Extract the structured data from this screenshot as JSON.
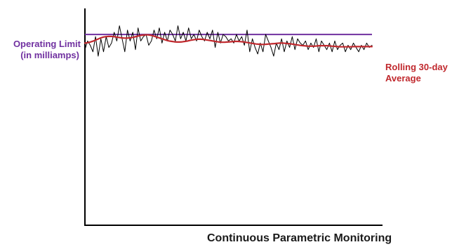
{
  "chart_data": {
    "type": "line",
    "title": "Continuous Parametric Monitoring",
    "xlabel": "",
    "ylabel": "",
    "grid": false,
    "legend": "none",
    "ylim": [
      0,
      100
    ],
    "xlim": [
      0,
      110
    ],
    "reference_line": {
      "label_line1": "Operating Limit",
      "label_line2": "(in milliamps)",
      "value": 88,
      "color": "#7030a0"
    },
    "series": [
      {
        "color": "#000000",
        "values": [
          81,
          85,
          83,
          80,
          87,
          78,
          86,
          80,
          87,
          82,
          84,
          89,
          85,
          92,
          86,
          80,
          90,
          85,
          89,
          81,
          91,
          85,
          87,
          88,
          83,
          85,
          90,
          86,
          91,
          84,
          89,
          85,
          90,
          88,
          85,
          92,
          86,
          89,
          85,
          91,
          86,
          88,
          85,
          90,
          87,
          85,
          89,
          86,
          90,
          82,
          89,
          84,
          88,
          87,
          85,
          86,
          84,
          88,
          85,
          87,
          83,
          90,
          80,
          86,
          82,
          79,
          84,
          80,
          88,
          85,
          82,
          78,
          84,
          81,
          86,
          80,
          85,
          82,
          87,
          81,
          86,
          84,
          83,
          85,
          81,
          84,
          82,
          86,
          80,
          85,
          83,
          81,
          84,
          80,
          85,
          81,
          83,
          84,
          80,
          83,
          81,
          84,
          82,
          80,
          83,
          81,
          84,
          82,
          83
        ]
      },
      {
        "name": "Rolling 30-day Average",
        "label_line1": "Rolling 30-day",
        "label_line2": "Average",
        "color": "#c0282d",
        "values": [
          84.0,
          84.2,
          84.5,
          84.9,
          85.4,
          85.9,
          86.4,
          86.8,
          87.0,
          87.1,
          87.1,
          87.0,
          86.8,
          86.6,
          86.4,
          86.3,
          86.3,
          86.4,
          86.6,
          86.9,
          87.2,
          87.5,
          87.7,
          87.8,
          87.8,
          87.6,
          87.3,
          86.9,
          86.5,
          86.1,
          85.7,
          85.3,
          85.0,
          84.8,
          84.6,
          84.5,
          84.5,
          84.6,
          84.8,
          85.0,
          85.3,
          85.5,
          85.7,
          85.8,
          85.8,
          85.7,
          85.5,
          85.3,
          85.1,
          84.9,
          84.7,
          84.5,
          84.4,
          84.4,
          84.5,
          84.6,
          84.7,
          84.8,
          84.8,
          84.7,
          84.6,
          84.4,
          84.2,
          84.0,
          83.8,
          83.6,
          83.5,
          83.4,
          83.4,
          83.5,
          83.6,
          83.7,
          83.8,
          83.9,
          84.0,
          84.0,
          83.9,
          83.8,
          83.7,
          83.5,
          83.3,
          83.1,
          82.9,
          82.8,
          82.7,
          82.6,
          82.6,
          82.6,
          82.7,
          82.8,
          82.8,
          82.8,
          82.8,
          82.7,
          82.6,
          82.5,
          82.4,
          82.3,
          82.3,
          82.3,
          82.3,
          82.3,
          82.4,
          82.4,
          82.4,
          82.4,
          82.4,
          82.4,
          82.4,
          82.4
        ]
      }
    ]
  }
}
